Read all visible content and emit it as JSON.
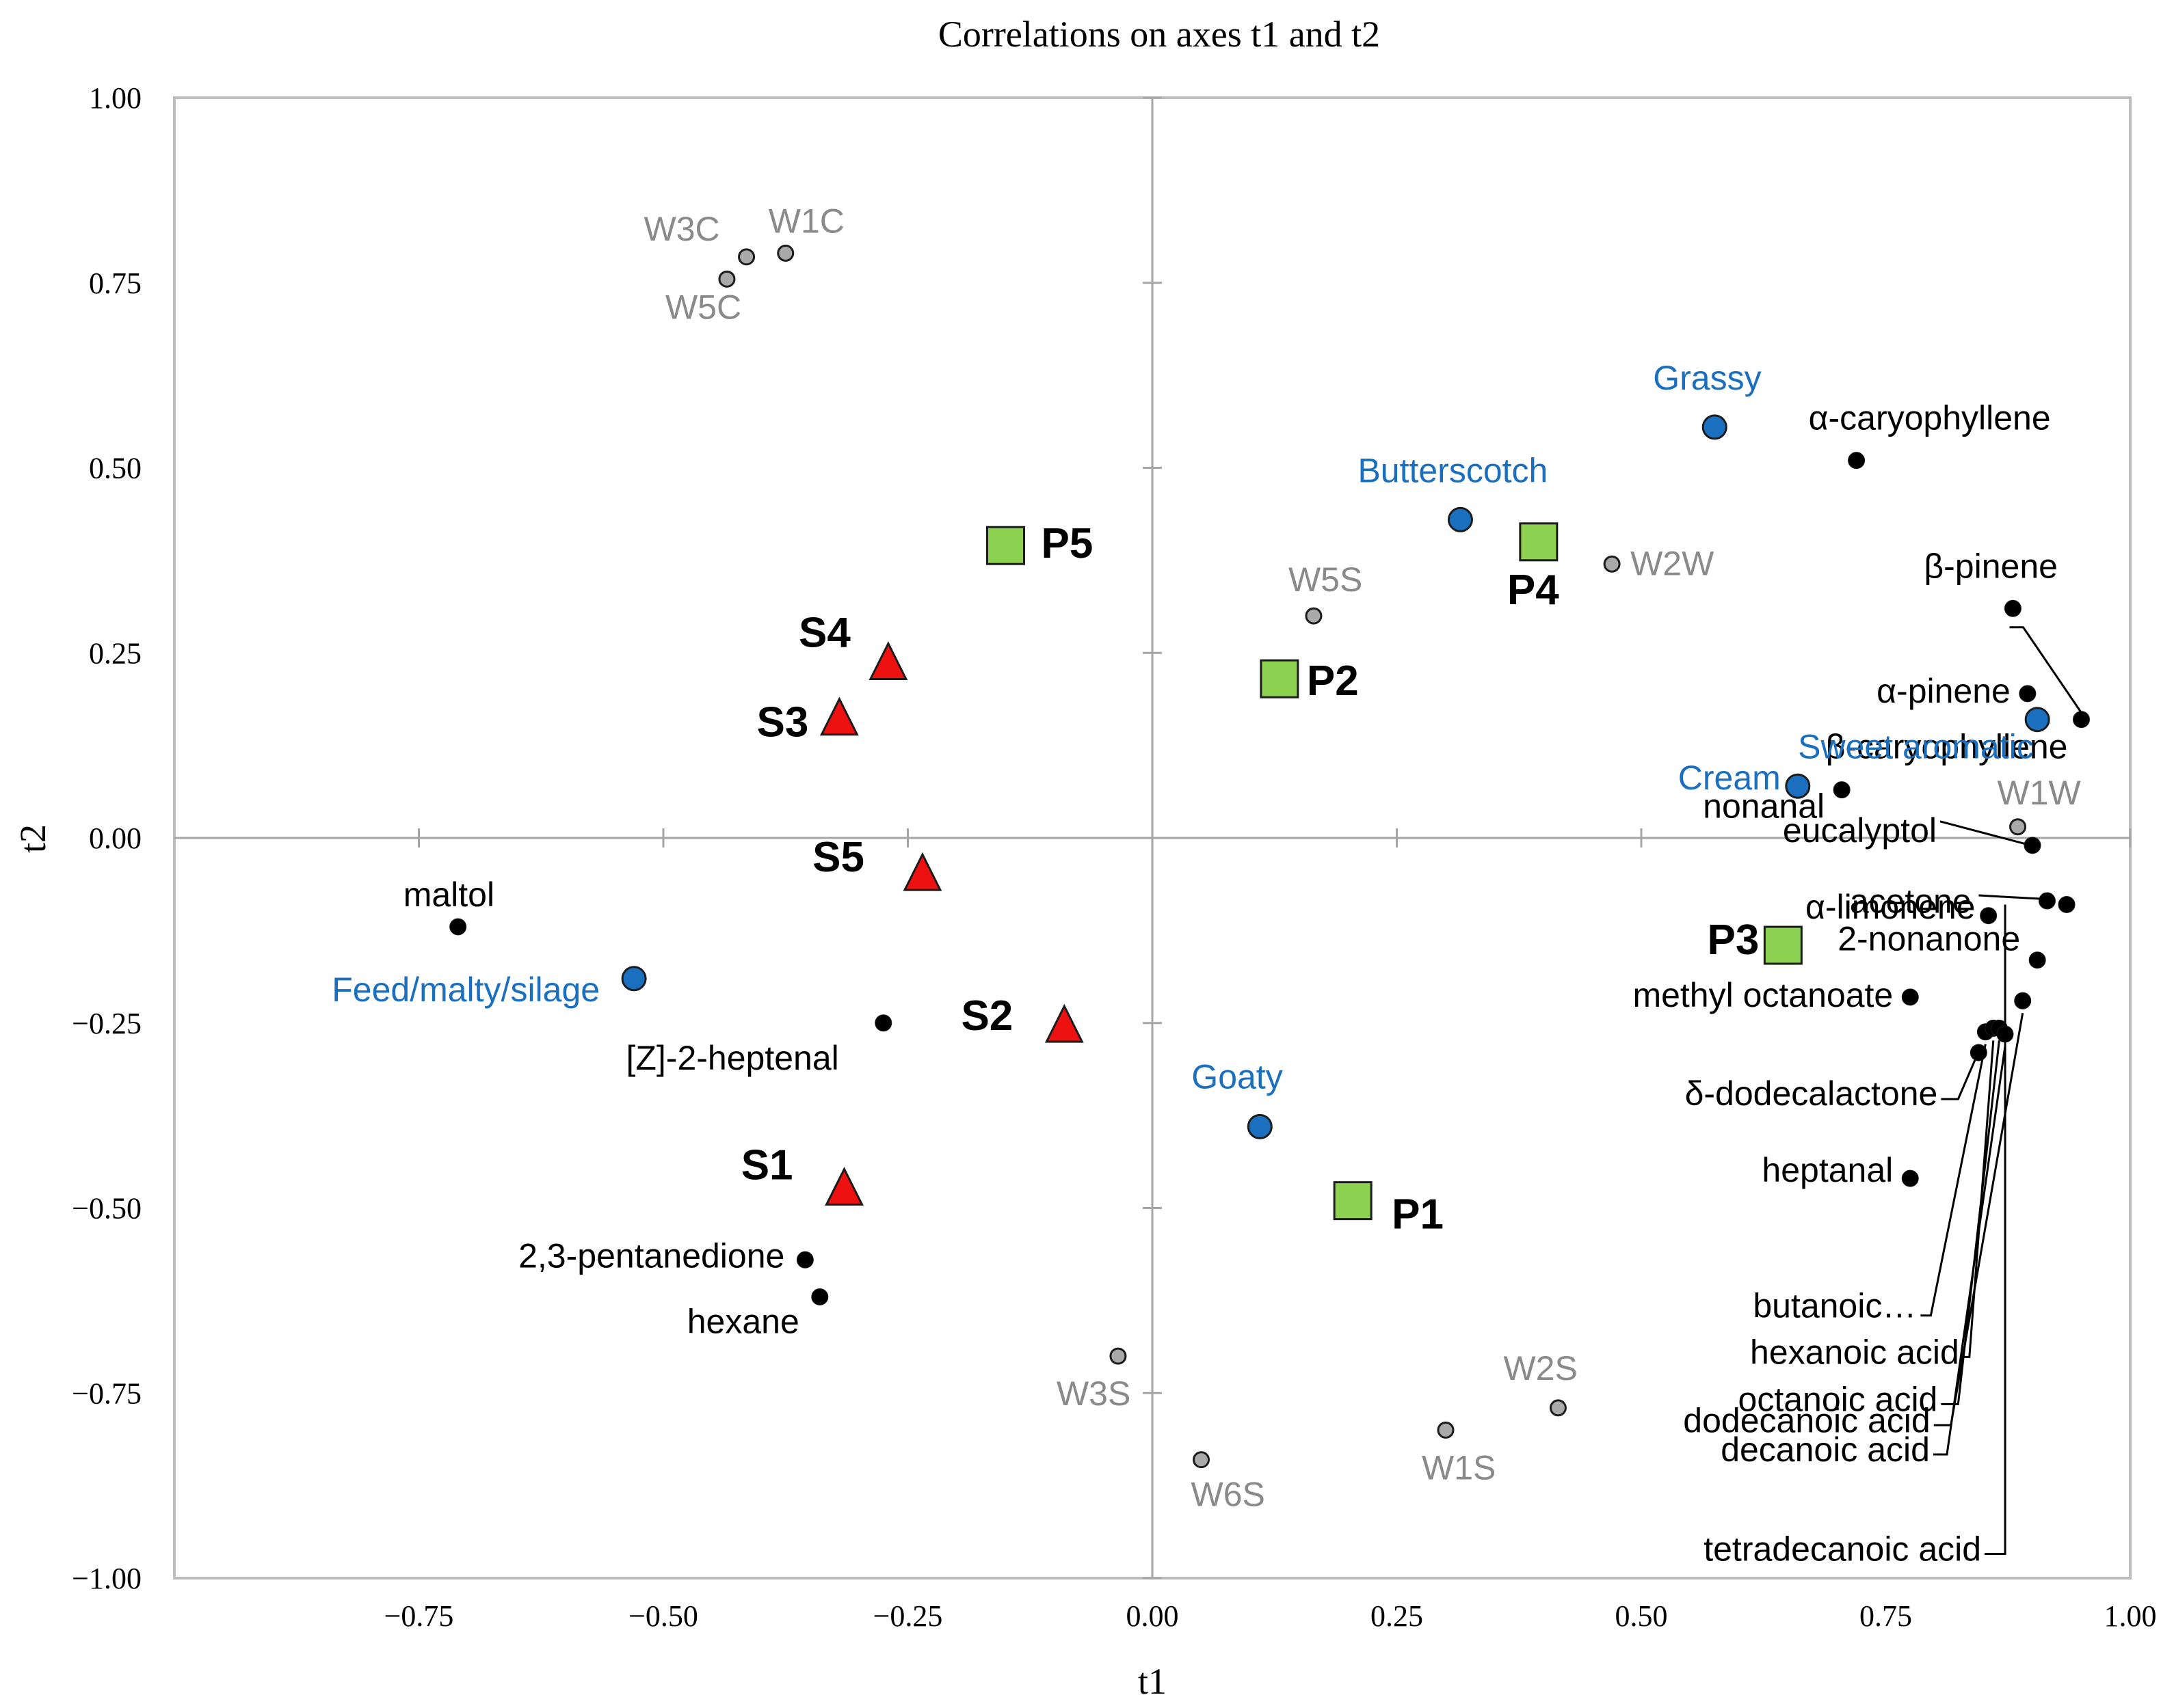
{
  "chart_data": {
    "type": "scatter",
    "title": "Correlations on axes t1 and t2",
    "xlabel": "t1",
    "ylabel": "t2",
    "xlim": [
      -1.0,
      1.0
    ],
    "ylim": [
      -1.0,
      1.0
    ],
    "xticks": [
      "−0.75",
      "−0.50",
      "−0.25",
      "0.00",
      "0.25",
      "0.50",
      "0.75",
      "1.00"
    ],
    "yticks": [
      "1.00",
      "0.75",
      "0.50",
      "0.25",
      "0.00",
      "−0.25",
      "−0.50",
      "−0.75",
      "−1.00"
    ],
    "grid": false,
    "colors": {
      "compound": "#000000",
      "sensor": "#a9a9a9",
      "sensory": "#1a6fbf",
      "product_p": "#8dd150",
      "product_s": "#ee1111"
    },
    "series": [
      {
        "group": "compounds",
        "marker": "black-dot",
        "points": [
          {
            "label": "α-caryophyllene",
            "x": 0.72,
            "y": 0.51
          },
          {
            "label": "β-pinene",
            "x": 0.88,
            "y": 0.31
          },
          {
            "label": "β-caryophyllene",
            "x": 0.95,
            "y": 0.16
          },
          {
            "label": "α-pinene",
            "x": 0.895,
            "y": 0.195
          },
          {
            "label": "nonanal",
            "x": 0.705,
            "y": 0.065
          },
          {
            "label": "eucalyptol",
            "x": 0.9,
            "y": -0.01
          },
          {
            "label": "α-limonene",
            "x": 0.915,
            "y": -0.085
          },
          {
            "label": "acetone",
            "x": 0.855,
            "y": -0.105
          },
          {
            "label": "2-nonanone",
            "x": 0.905,
            "y": -0.165
          },
          {
            "label": "methyl octanoate",
            "x": 0.775,
            "y": -0.215
          },
          {
            "label": "δ-dodecalactone",
            "x": 0.845,
            "y": -0.29
          },
          {
            "label": "heptanal",
            "x": 0.775,
            "y": -0.46
          },
          {
            "label": "butanoic…",
            "x": 0.852,
            "y": -0.262
          },
          {
            "label": "hexanoic acid",
            "x": 0.86,
            "y": -0.257
          },
          {
            "label": "octanoic acid",
            "x": 0.866,
            "y": -0.257
          },
          {
            "label": "decanoic acid",
            "x": 0.872,
            "y": -0.265
          },
          {
            "label": "dodecanoic acid",
            "x": 0.89,
            "y": -0.22
          },
          {
            "label": "tetradecanoic acid",
            "x": 0.935,
            "y": -0.09
          },
          {
            "label": "maltol",
            "x": -0.71,
            "y": -0.12
          },
          {
            "label": "[Z]-2-heptenal",
            "x": -0.275,
            "y": -0.25
          },
          {
            "label": "2,3-pentanedione",
            "x": -0.355,
            "y": -0.57
          },
          {
            "label": "hexane",
            "x": -0.34,
            "y": -0.62
          }
        ]
      },
      {
        "group": "sensors",
        "marker": "grey-dot",
        "points": [
          {
            "label": "W3C",
            "x": -0.415,
            "y": 0.785
          },
          {
            "label": "W1C",
            "x": -0.375,
            "y": 0.79
          },
          {
            "label": "W5C",
            "x": -0.435,
            "y": 0.755
          },
          {
            "label": "W5S",
            "x": 0.165,
            "y": 0.3
          },
          {
            "label": "W2W",
            "x": 0.47,
            "y": 0.37
          },
          {
            "label": "W1W",
            "x": 0.885,
            "y": 0.015
          },
          {
            "label": "W3S",
            "x": -0.035,
            "y": -0.7
          },
          {
            "label": "W2S",
            "x": 0.415,
            "y": -0.77
          },
          {
            "label": "W1S",
            "x": 0.3,
            "y": -0.8
          },
          {
            "label": "W6S",
            "x": 0.05,
            "y": -0.84
          }
        ]
      },
      {
        "group": "sensory",
        "marker": "blue-circle",
        "points": [
          {
            "label": "Grassy",
            "x": 0.575,
            "y": 0.555
          },
          {
            "label": "Butterscotch",
            "x": 0.315,
            "y": 0.43
          },
          {
            "label": "Sweet aromatic",
            "x": 0.905,
            "y": 0.16
          },
          {
            "label": "Cream",
            "x": 0.66,
            "y": 0.07
          },
          {
            "label": "Feed/malty/silage",
            "x": -0.53,
            "y": -0.19
          },
          {
            "label": "Goaty",
            "x": 0.11,
            "y": -0.39
          }
        ]
      },
      {
        "group": "products-P",
        "marker": "green-square",
        "points": [
          {
            "label": "P5",
            "x": -0.15,
            "y": 0.395
          },
          {
            "label": "P4",
            "x": 0.395,
            "y": 0.4
          },
          {
            "label": "P2",
            "x": 0.13,
            "y": 0.215
          },
          {
            "label": "P3",
            "x": 0.645,
            "y": -0.145
          },
          {
            "label": "P1",
            "x": 0.205,
            "y": -0.49
          }
        ]
      },
      {
        "group": "products-S",
        "marker": "red-triangle",
        "points": [
          {
            "label": "S4",
            "x": -0.27,
            "y": 0.235
          },
          {
            "label": "S3",
            "x": -0.32,
            "y": 0.16
          },
          {
            "label": "S5",
            "x": -0.235,
            "y": -0.05
          },
          {
            "label": "S2",
            "x": -0.09,
            "y": -0.255
          },
          {
            "label": "S1",
            "x": -0.315,
            "y": -0.475
          }
        ]
      }
    ]
  }
}
